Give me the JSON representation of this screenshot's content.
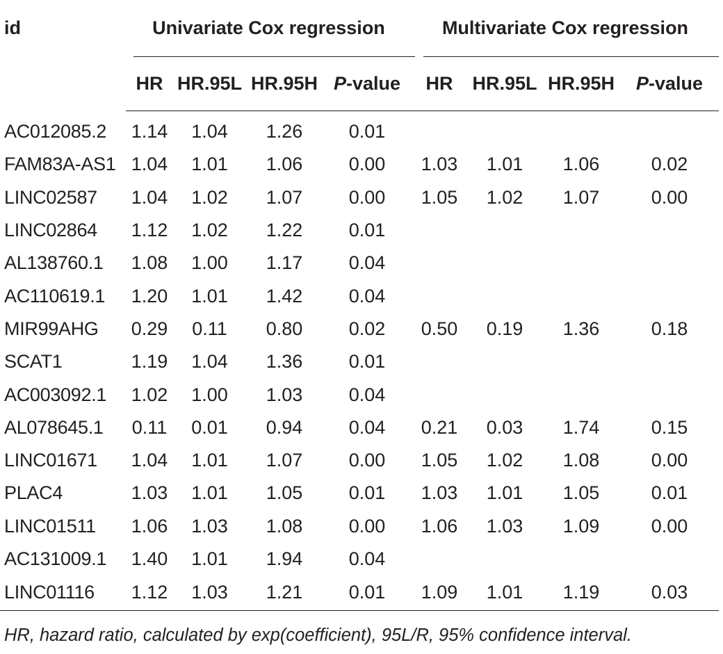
{
  "table": {
    "id_header": "id",
    "group_univariate": "Univariate Cox regression",
    "group_multivariate": "Multivariate Cox regression",
    "sub_headers": {
      "hr": "HR",
      "hr95l": "HR.95L",
      "hr95h": "HR.95H",
      "p_italic": "P",
      "p_rest": "-value"
    },
    "rows": [
      {
        "id": "AC012085.2",
        "u": [
          "1.14",
          "1.04",
          "1.26",
          "0.01"
        ],
        "m": [
          "",
          "",
          "",
          ""
        ]
      },
      {
        "id": "FAM83A-AS1",
        "u": [
          "1.04",
          "1.01",
          "1.06",
          "0.00"
        ],
        "m": [
          "1.03",
          "1.01",
          "1.06",
          "0.02"
        ]
      },
      {
        "id": "LINC02587",
        "u": [
          "1.04",
          "1.02",
          "1.07",
          "0.00"
        ],
        "m": [
          "1.05",
          "1.02",
          "1.07",
          "0.00"
        ]
      },
      {
        "id": "LINC02864",
        "u": [
          "1.12",
          "1.02",
          "1.22",
          "0.01"
        ],
        "m": [
          "",
          "",
          "",
          ""
        ]
      },
      {
        "id": "AL138760.1",
        "u": [
          "1.08",
          "1.00",
          "1.17",
          "0.04"
        ],
        "m": [
          "",
          "",
          "",
          ""
        ]
      },
      {
        "id": "AC110619.1",
        "u": [
          "1.20",
          "1.01",
          "1.42",
          "0.04"
        ],
        "m": [
          "",
          "",
          "",
          ""
        ]
      },
      {
        "id": "MIR99AHG",
        "u": [
          "0.29",
          "0.11",
          "0.80",
          "0.02"
        ],
        "m": [
          "0.50",
          "0.19",
          "1.36",
          "0.18"
        ]
      },
      {
        "id": "SCAT1",
        "u": [
          "1.19",
          "1.04",
          "1.36",
          "0.01"
        ],
        "m": [
          "",
          "",
          "",
          ""
        ]
      },
      {
        "id": "AC003092.1",
        "u": [
          "1.02",
          "1.00",
          "1.03",
          "0.04"
        ],
        "m": [
          "",
          "",
          "",
          ""
        ]
      },
      {
        "id": "AL078645.1",
        "u": [
          "0.11",
          "0.01",
          "0.94",
          "0.04"
        ],
        "m": [
          "0.21",
          "0.03",
          "1.74",
          "0.15"
        ]
      },
      {
        "id": "LINC01671",
        "u": [
          "1.04",
          "1.01",
          "1.07",
          "0.00"
        ],
        "m": [
          "1.05",
          "1.02",
          "1.08",
          "0.00"
        ]
      },
      {
        "id": "PLAC4",
        "u": [
          "1.03",
          "1.01",
          "1.05",
          "0.01"
        ],
        "m": [
          "1.03",
          "1.01",
          "1.05",
          "0.01"
        ]
      },
      {
        "id": "LINC01511",
        "u": [
          "1.06",
          "1.03",
          "1.08",
          "0.00"
        ],
        "m": [
          "1.06",
          "1.03",
          "1.09",
          "0.00"
        ]
      },
      {
        "id": "AC131009.1",
        "u": [
          "1.40",
          "1.01",
          "1.94",
          "0.04"
        ],
        "m": [
          "",
          "",
          "",
          ""
        ]
      },
      {
        "id": "LINC01116",
        "u": [
          "1.12",
          "1.03",
          "1.21",
          "0.01"
        ],
        "m": [
          "1.09",
          "1.01",
          "1.19",
          "0.03"
        ]
      }
    ]
  },
  "footnote": "HR, hazard ratio, calculated by exp(coefficient), 95L/R, 95% confidence interval."
}
